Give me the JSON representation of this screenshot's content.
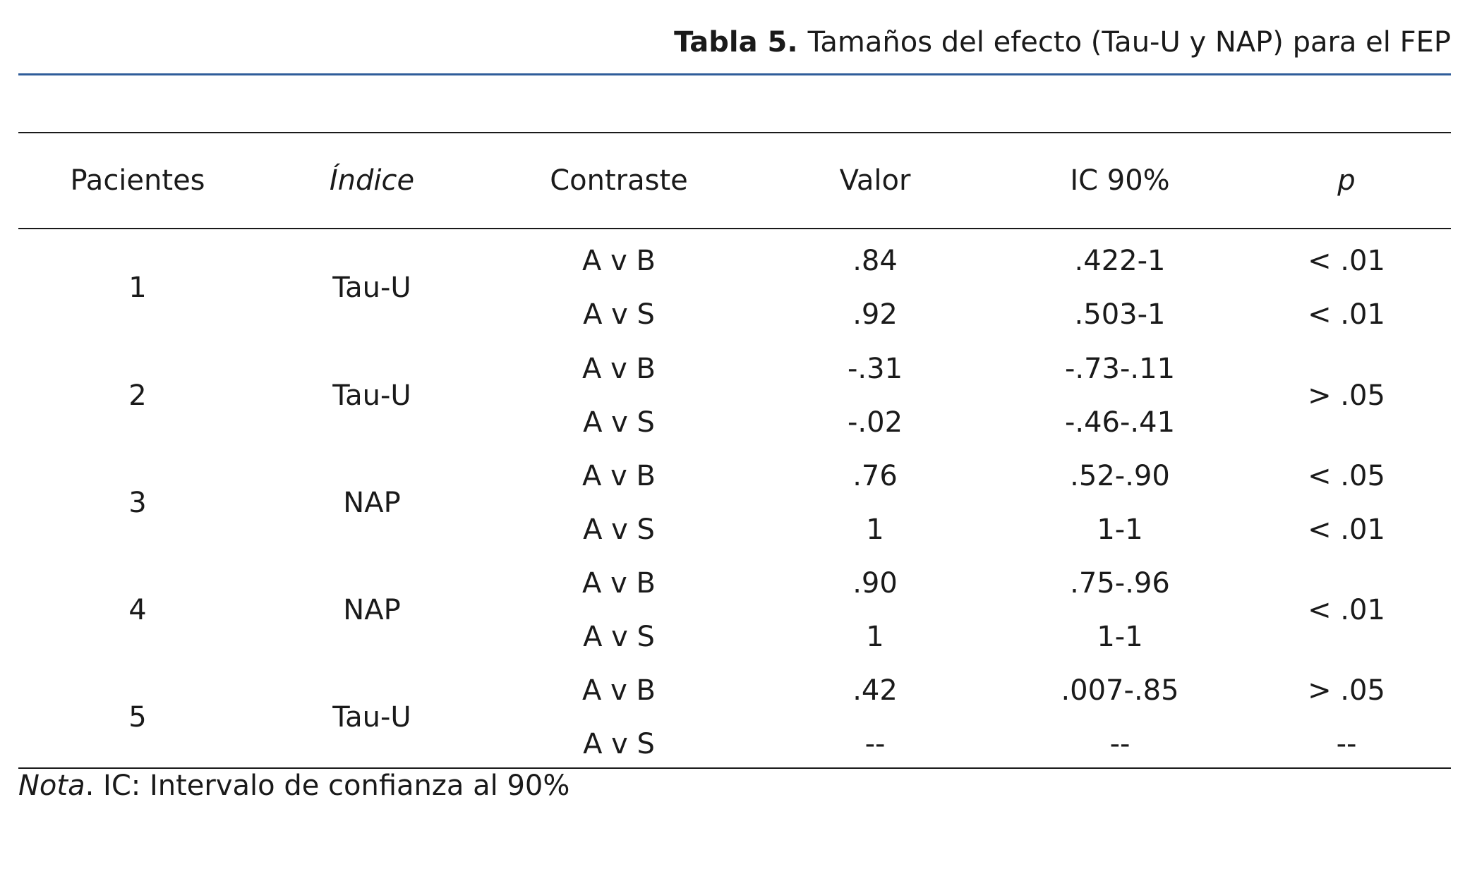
{
  "caption": {
    "label": "Tabla 5.",
    "title": "Tamaños del efecto (Tau-U y NAP) para el FEP"
  },
  "headers": [
    "Pacientes",
    "Índice",
    "Contraste",
    "Valor",
    "IC 90%",
    "p"
  ],
  "groups": [
    {
      "patient": "1",
      "index": "Tau-U",
      "rows": [
        {
          "contrast": "A v B",
          "value": ".84",
          "ci": ".422-1",
          "p": "< .01"
        },
        {
          "contrast": "A v S",
          "value": ".92",
          "ci": ".503-1",
          "p": "< .01"
        }
      ],
      "p_merged": false
    },
    {
      "patient": "2",
      "index": "Tau-U",
      "rows": [
        {
          "contrast": "A v B",
          "value": "-.31",
          "ci": "-.73-.11"
        },
        {
          "contrast": "A v S",
          "value": "-.02",
          "ci": "-.46-.41"
        }
      ],
      "p_merged": true,
      "p": "> .05"
    },
    {
      "patient": "3",
      "index": "NAP",
      "rows": [
        {
          "contrast": "A v B",
          "value": ".76",
          "ci": ".52-.90",
          "p": "< .05"
        },
        {
          "contrast": "A v S",
          "value": "1",
          "ci": "1-1",
          "p": "< .01"
        }
      ],
      "p_merged": false
    },
    {
      "patient": "4",
      "index": "NAP",
      "rows": [
        {
          "contrast": "A v B",
          "value": ".90",
          "ci": ".75-.96"
        },
        {
          "contrast": "A v S",
          "value": "1",
          "ci": "1-1"
        }
      ],
      "p_merged": true,
      "p": "< .01"
    },
    {
      "patient": "5",
      "index": "Tau-U",
      "rows": [
        {
          "contrast": "A v B",
          "value": ".42",
          "ci": ".007-.85",
          "p": "> .05"
        },
        {
          "contrast": "A v S",
          "value": "--",
          "ci": "--",
          "p": "--"
        }
      ],
      "p_merged": false
    }
  ],
  "note": {
    "lead": "Nota",
    "text": ". IC: Intervalo de confianza al 90%"
  }
}
